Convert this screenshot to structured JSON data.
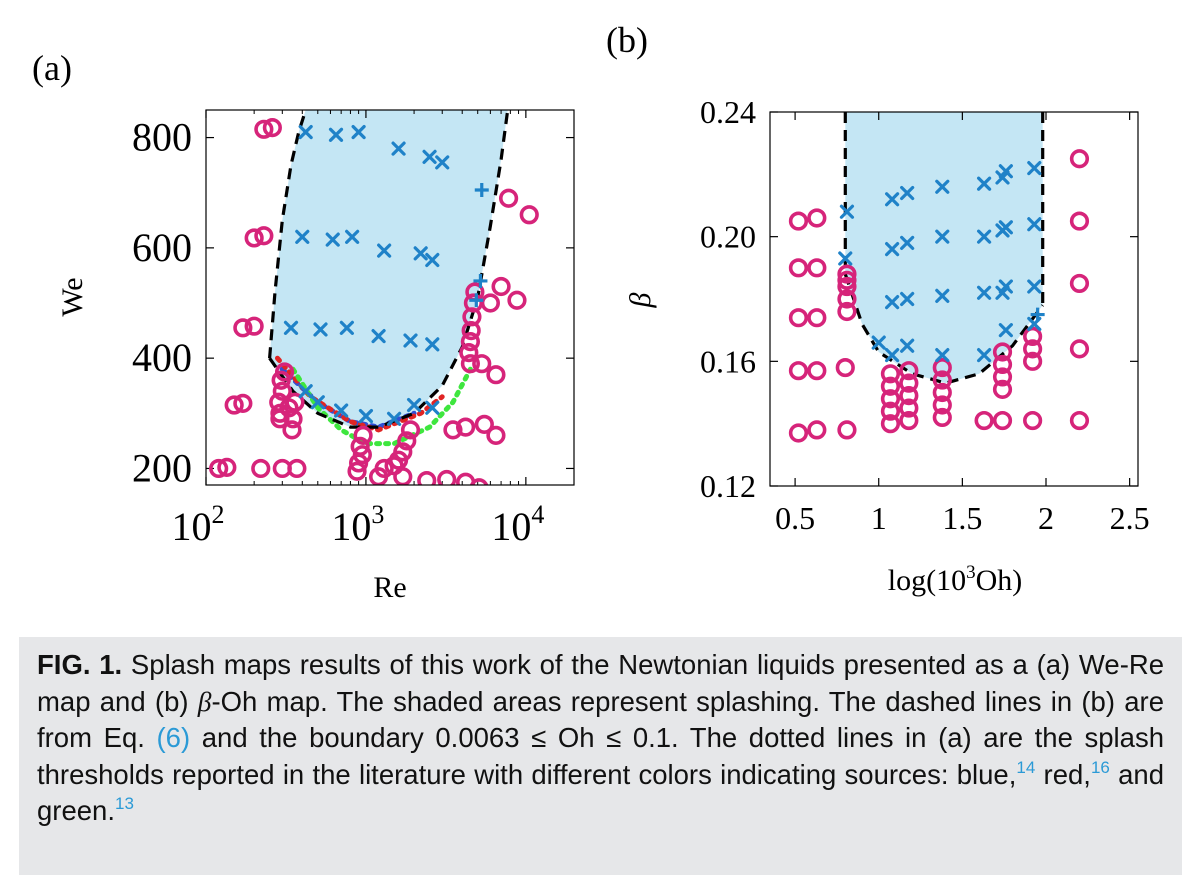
{
  "colors": {
    "shade": "#c4e6f4",
    "cross": "#1f82c8",
    "circle": "#d6247a",
    "boundary": "#000000",
    "thr_blue": "#2f4fd6",
    "thr_red": "#e02424",
    "thr_green": "#3ee63e"
  },
  "chart_data": [
    {
      "type": "scatter",
      "panel_label": "(a)",
      "xlabel": "Re",
      "ylabel": "We",
      "xscale": "log",
      "xlim": [
        100,
        20000
      ],
      "ylim": [
        170,
        850
      ],
      "xticks": [
        {
          "v": 100,
          "base": "10",
          "exp": "2"
        },
        {
          "v": 1000,
          "base": "10",
          "exp": "3"
        },
        {
          "v": 10000,
          "base": "10",
          "exp": "4"
        }
      ],
      "yticks": [
        {
          "v": 200,
          "label": "200"
        },
        {
          "v": 400,
          "label": "400"
        },
        {
          "v": 600,
          "label": "600"
        },
        {
          "v": 800,
          "label": "800"
        }
      ],
      "boundary": [
        [
          250,
          400
        ],
        [
          270,
          520
        ],
        [
          300,
          650
        ],
        [
          340,
          750
        ],
        [
          380,
          810
        ],
        [
          420,
          850
        ]
      ],
      "boundary_bottom": [
        [
          250,
          400
        ],
        [
          350,
          340
        ],
        [
          500,
          300
        ],
        [
          800,
          275
        ],
        [
          1200,
          275
        ],
        [
          2000,
          300
        ],
        [
          3000,
          350
        ],
        [
          4000,
          420
        ],
        [
          5000,
          510
        ],
        [
          6000,
          640
        ],
        [
          7000,
          760
        ],
        [
          7700,
          850
        ]
      ],
      "thresholds": [
        {
          "name": "blue",
          "points": [
            [
              300,
              380
            ],
            [
              500,
              320
            ],
            [
              800,
              285
            ],
            [
              1200,
              275
            ],
            [
              2000,
              300
            ]
          ]
        },
        {
          "name": "red",
          "points": [
            [
              280,
              400
            ],
            [
              450,
              330
            ],
            [
              800,
              285
            ],
            [
              1200,
              270
            ],
            [
              2200,
              300
            ],
            [
              3000,
              330
            ]
          ]
        },
        {
          "name": "green",
          "points": [
            [
              350,
              380
            ],
            [
              500,
              310
            ],
            [
              700,
              270
            ],
            [
              1000,
              245
            ],
            [
              1500,
              245
            ],
            [
              2500,
              275
            ],
            [
              3500,
              320
            ],
            [
              4500,
              380
            ]
          ]
        }
      ],
      "crosses": [
        [
          420,
          810
        ],
        [
          650,
          805
        ],
        [
          900,
          810
        ],
        [
          1600,
          780
        ],
        [
          2500,
          765
        ],
        [
          3000,
          755
        ],
        [
          400,
          620
        ],
        [
          620,
          615
        ],
        [
          820,
          620
        ],
        [
          1300,
          595
        ],
        [
          2200,
          590
        ],
        [
          2600,
          578
        ],
        [
          340,
          455
        ],
        [
          520,
          452
        ],
        [
          760,
          455
        ],
        [
          1200,
          440
        ],
        [
          1900,
          432
        ],
        [
          2600,
          425
        ],
        [
          420,
          340
        ],
        [
          500,
          320
        ],
        [
          700,
          305
        ],
        [
          1000,
          295
        ],
        [
          1500,
          290
        ],
        [
          2000,
          315
        ],
        [
          2600,
          310
        ]
      ],
      "pluses": [
        [
          5300,
          705
        ],
        [
          5200,
          540
        ],
        [
          4900,
          505
        ]
      ],
      "circles": [
        [
          230,
          815
        ],
        [
          260,
          818
        ],
        [
          200,
          618
        ],
        [
          230,
          622
        ],
        [
          170,
          455
        ],
        [
          200,
          458
        ],
        [
          150,
          315
        ],
        [
          170,
          318
        ],
        [
          120,
          200
        ],
        [
          135,
          202
        ],
        [
          220,
          200
        ],
        [
          300,
          200
        ],
        [
          370,
          200
        ],
        [
          290,
          300
        ],
        [
          285,
          320
        ],
        [
          300,
          340
        ],
        [
          295,
          360
        ],
        [
          310,
          375
        ],
        [
          290,
          290
        ],
        [
          330,
          310
        ],
        [
          350,
          290
        ],
        [
          345,
          270
        ],
        [
          360,
          320
        ],
        [
          880,
          195
        ],
        [
          900,
          210
        ],
        [
          950,
          225
        ],
        [
          920,
          240
        ],
        [
          960,
          260
        ],
        [
          1200,
          185
        ],
        [
          1300,
          200
        ],
        [
          1500,
          205
        ],
        [
          1600,
          215
        ],
        [
          1700,
          230
        ],
        [
          1800,
          250
        ],
        [
          1900,
          270
        ],
        [
          1700,
          185
        ],
        [
          4500,
          390
        ],
        [
          4400,
          410
        ],
        [
          4500,
          430
        ],
        [
          4550,
          450
        ],
        [
          4600,
          475
        ],
        [
          4700,
          500
        ],
        [
          4800,
          520
        ],
        [
          5300,
          390
        ],
        [
          6500,
          370
        ],
        [
          6000,
          500
        ],
        [
          7000,
          530
        ],
        [
          8800,
          505
        ],
        [
          5500,
          280
        ],
        [
          6500,
          260
        ],
        [
          3500,
          270
        ],
        [
          4200,
          275
        ],
        [
          3200,
          180
        ],
        [
          4200,
          175
        ],
        [
          5100,
          165
        ],
        [
          2400,
          178
        ],
        [
          7800,
          690
        ],
        [
          10500,
          660
        ]
      ]
    },
    {
      "type": "scatter",
      "panel_label": "(b)",
      "xlabel_prefix": "log(10",
      "xlabel_sup": "3",
      "xlabel_suffix": "Oh)",
      "ylabel": "β",
      "xlim": [
        0.35,
        2.55
      ],
      "ylim": [
        0.12,
        0.24
      ],
      "xticks": [
        {
          "v": 0.5,
          "label": "0.5"
        },
        {
          "v": 1,
          "label": "1"
        },
        {
          "v": 1.5,
          "label": "1.5"
        },
        {
          "v": 2,
          "label": "2"
        },
        {
          "v": 2.5,
          "label": "2.5"
        }
      ],
      "yticks": [
        {
          "v": 0.12,
          "label": "0.12"
        },
        {
          "v": 0.16,
          "label": "0.16"
        },
        {
          "v": 0.2,
          "label": "0.20"
        },
        {
          "v": 0.24,
          "label": "0.24"
        }
      ],
      "boundary_left": [
        [
          0.8,
          0.24
        ],
        [
          0.8,
          0.188
        ]
      ],
      "boundary_right": [
        [
          1.98,
          0.24
        ],
        [
          1.98,
          0.178
        ]
      ],
      "boundary_curve": [
        [
          0.8,
          0.188
        ],
        [
          0.9,
          0.172
        ],
        [
          1.0,
          0.163
        ],
        [
          1.2,
          0.156
        ],
        [
          1.4,
          0.153
        ],
        [
          1.6,
          0.156
        ],
        [
          1.8,
          0.165
        ],
        [
          1.98,
          0.178
        ]
      ],
      "crosses": [
        [
          0.81,
          0.208
        ],
        [
          1.08,
          0.212
        ],
        [
          1.17,
          0.214
        ],
        [
          1.38,
          0.216
        ],
        [
          1.63,
          0.217
        ],
        [
          1.74,
          0.219
        ],
        [
          1.76,
          0.221
        ],
        [
          1.93,
          0.222
        ],
        [
          0.8,
          0.193
        ],
        [
          1.08,
          0.196
        ],
        [
          1.17,
          0.198
        ],
        [
          1.38,
          0.2
        ],
        [
          1.63,
          0.2
        ],
        [
          1.74,
          0.202
        ],
        [
          1.76,
          0.203
        ],
        [
          1.93,
          0.204
        ],
        [
          1.08,
          0.179
        ],
        [
          1.17,
          0.18
        ],
        [
          1.38,
          0.181
        ],
        [
          1.63,
          0.182
        ],
        [
          1.74,
          0.182
        ],
        [
          1.76,
          0.184
        ],
        [
          1.93,
          0.184
        ],
        [
          1.0,
          0.166
        ],
        [
          1.17,
          0.165
        ],
        [
          1.63,
          0.162
        ],
        [
          1.76,
          0.17
        ],
        [
          1.93,
          0.172
        ],
        [
          1.08,
          0.162
        ],
        [
          1.38,
          0.162
        ]
      ],
      "pluses": [
        [
          1.95,
          0.175
        ]
      ],
      "circles": [
        [
          0.52,
          0.205
        ],
        [
          0.63,
          0.206
        ],
        [
          0.52,
          0.19
        ],
        [
          0.63,
          0.19
        ],
        [
          0.52,
          0.174
        ],
        [
          0.63,
          0.174
        ],
        [
          0.52,
          0.157
        ],
        [
          0.63,
          0.157
        ],
        [
          0.52,
          0.137
        ],
        [
          0.63,
          0.138
        ],
        [
          0.8,
          0.158
        ],
        [
          0.81,
          0.138
        ],
        [
          0.81,
          0.188
        ],
        [
          0.81,
          0.184
        ],
        [
          0.81,
          0.18
        ],
        [
          0.81,
          0.176
        ],
        [
          0.81,
          0.186
        ],
        [
          1.07,
          0.156
        ],
        [
          1.07,
          0.152
        ],
        [
          1.07,
          0.148
        ],
        [
          1.07,
          0.144
        ],
        [
          1.07,
          0.14
        ],
        [
          1.18,
          0.157
        ],
        [
          1.18,
          0.153
        ],
        [
          1.18,
          0.149
        ],
        [
          1.18,
          0.145
        ],
        [
          1.18,
          0.141
        ],
        [
          1.38,
          0.158
        ],
        [
          1.38,
          0.154
        ],
        [
          1.38,
          0.15
        ],
        [
          1.38,
          0.146
        ],
        [
          1.38,
          0.142
        ],
        [
          1.63,
          0.141
        ],
        [
          1.74,
          0.141
        ],
        [
          1.74,
          0.163
        ],
        [
          1.74,
          0.159
        ],
        [
          1.74,
          0.155
        ],
        [
          1.74,
          0.151
        ],
        [
          1.92,
          0.168
        ],
        [
          1.92,
          0.164
        ],
        [
          1.92,
          0.16
        ],
        [
          1.92,
          0.141
        ],
        [
          2.2,
          0.225
        ],
        [
          2.2,
          0.205
        ],
        [
          2.2,
          0.185
        ],
        [
          2.2,
          0.164
        ],
        [
          2.2,
          0.141
        ]
      ]
    }
  ],
  "caption": {
    "fig_label": "FIG. 1.",
    "part1": " Splash maps results of this work of the Newtonian liquids presented as a (a) We-Re map and (b) ",
    "beta": "β",
    "part2": "-Oh map. The shaded areas represent splashing. The dashed lines in (b) are from Eq. ",
    "eq_ref": "(6)",
    "part3": " and the boundary 0.0063 ≤ Oh ≤ 0.1. The dotted lines in (a) are the splash thresholds reported in the literature with different colors indicating sources: blue,",
    "ref1": "14",
    "part4": " red,",
    "ref2": "16",
    "part5": " and green.",
    "ref3": "13"
  }
}
